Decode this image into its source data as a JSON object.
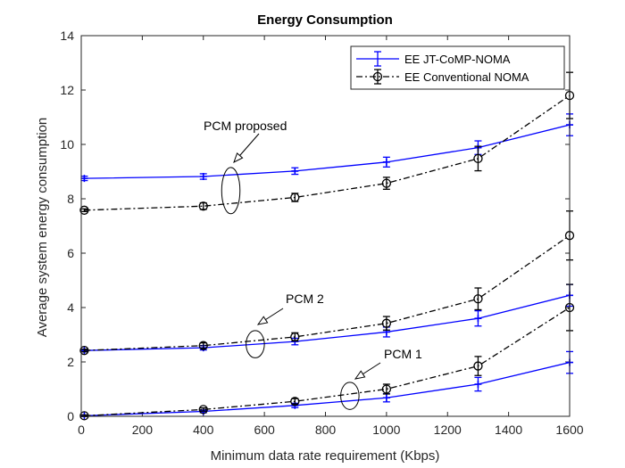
{
  "chart_data": {
    "type": "line",
    "title": "Energy Consumption",
    "xlabel": "Minimum data rate requirement (Kbps)",
    "ylabel": "Average system energy consumption",
    "xlim": [
      0,
      1600
    ],
    "ylim": [
      0,
      14
    ],
    "xticks": [
      0,
      200,
      400,
      600,
      800,
      1000,
      1200,
      1400,
      1600
    ],
    "yticks": [
      0,
      2,
      4,
      6,
      8,
      10,
      12,
      14
    ],
    "grid": false,
    "legend_position": "top-right",
    "legend": [
      {
        "label": "EE JT-CoMP-NOMA",
        "color": "#0000ff",
        "style": "solid",
        "marker": "plus"
      },
      {
        "label": "EE Conventional NOMA",
        "color": "#000000",
        "style": "dash-dot",
        "marker": "circle"
      }
    ],
    "x": [
      10,
      400,
      700,
      1000,
      1300,
      1600
    ],
    "series": [
      {
        "group": "PCM proposed",
        "legend_index": 0,
        "y": [
          8.75,
          8.82,
          9.02,
          9.35,
          9.88,
          10.72
        ],
        "err": [
          0.08,
          0.1,
          0.12,
          0.18,
          0.25,
          0.4
        ]
      },
      {
        "group": "PCM proposed",
        "legend_index": 1,
        "y": [
          7.58,
          7.73,
          8.05,
          8.57,
          9.48,
          11.8
        ],
        "err": [
          0.05,
          0.12,
          0.15,
          0.22,
          0.45,
          0.85
        ]
      },
      {
        "group": "PCM 2",
        "legend_index": 0,
        "y": [
          2.42,
          2.52,
          2.75,
          3.1,
          3.6,
          4.45
        ],
        "err": [
          0.05,
          0.08,
          0.12,
          0.18,
          0.28,
          0.4
        ]
      },
      {
        "group": "PCM 2",
        "legend_index": 1,
        "y": [
          2.42,
          2.6,
          2.92,
          3.42,
          4.32,
          6.65
        ],
        "err": [
          0.05,
          0.1,
          0.15,
          0.25,
          0.4,
          0.9
        ]
      },
      {
        "group": "PCM 1",
        "legend_index": 0,
        "y": [
          0.02,
          0.18,
          0.4,
          0.68,
          1.18,
          1.98
        ],
        "err": [
          0.03,
          0.05,
          0.08,
          0.15,
          0.25,
          0.4
        ]
      },
      {
        "group": "PCM 1",
        "legend_index": 1,
        "y": [
          0.02,
          0.25,
          0.55,
          1.0,
          1.85,
          4.0
        ],
        "err": [
          0.03,
          0.06,
          0.1,
          0.18,
          0.35,
          0.85
        ]
      }
    ],
    "annotations": [
      {
        "text": "PCM proposed",
        "ellipse_at": [
          490,
          8.3
        ],
        "ellipse_half_width": 30,
        "ellipse_half_height": 0.85
      },
      {
        "text": "PCM 2",
        "ellipse_at": [
          570,
          2.65
        ],
        "ellipse_half_width": 30,
        "ellipse_half_height": 0.5
      },
      {
        "text": "PCM 1",
        "ellipse_at": [
          880,
          0.75
        ],
        "ellipse_half_width": 30,
        "ellipse_half_height": 0.5
      }
    ]
  }
}
